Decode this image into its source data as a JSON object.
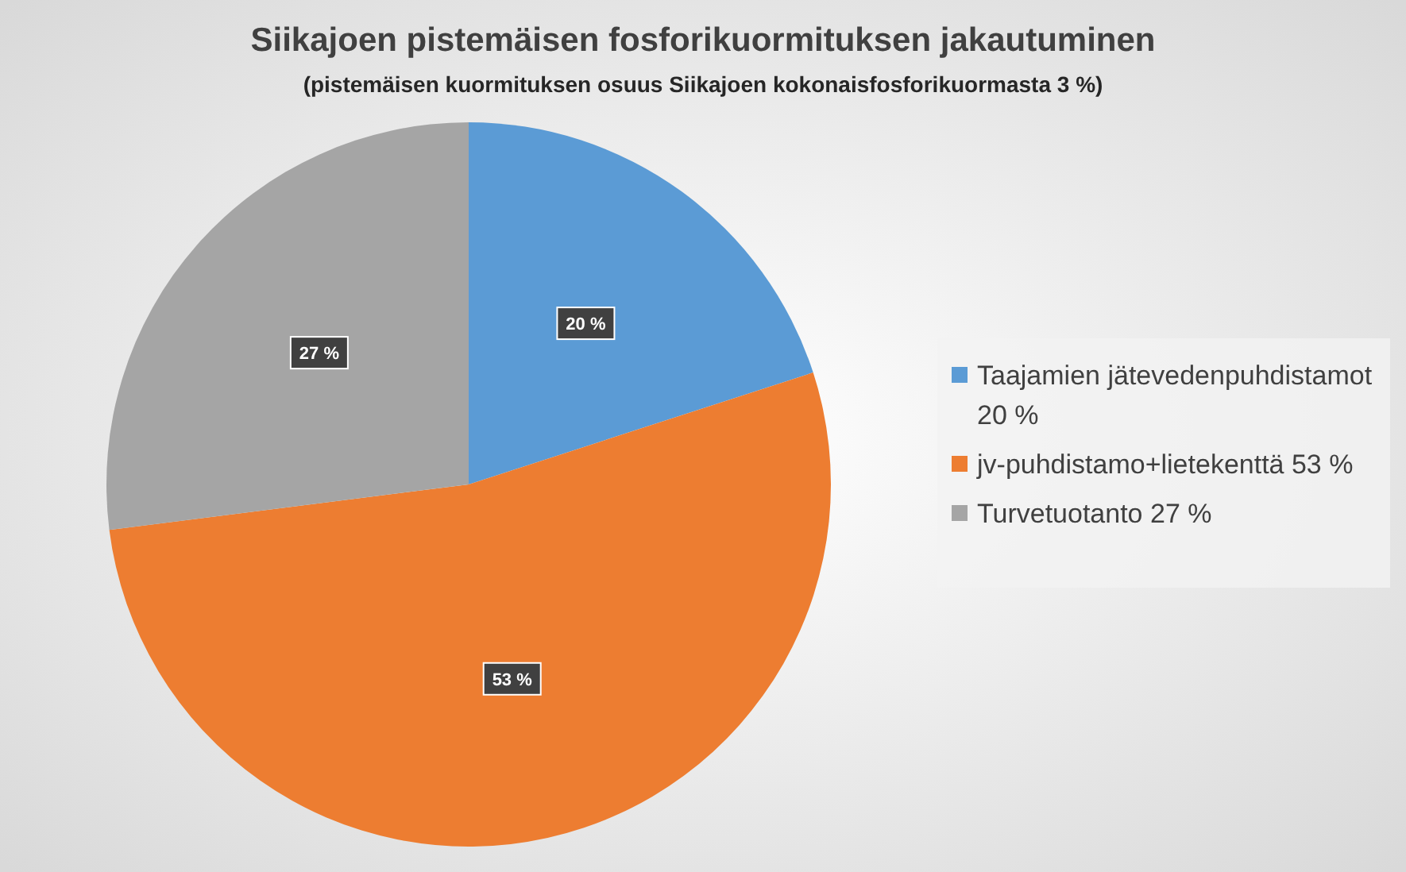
{
  "chart_data": {
    "type": "pie",
    "title": "Siikajoen pistemäisen fosforikuormituksen jakautuminen",
    "subtitle": "(pistemäisen kuormituksen osuus  Siikajoen kokonaisfosforikuormasta 3 %)",
    "categories": [
      "Taajamien jätevedenpuhdistamot 20 %",
      "jv-puhdistamo+lietekenttä 53 %",
      "Turvetuotanto 27 %"
    ],
    "values": [
      20,
      53,
      27
    ],
    "colors": [
      "#5b9bd5",
      "#ed7d31",
      "#a5a5a5"
    ],
    "value_labels": [
      "20 %",
      "53 %",
      "27 %"
    ],
    "legend": "right"
  }
}
